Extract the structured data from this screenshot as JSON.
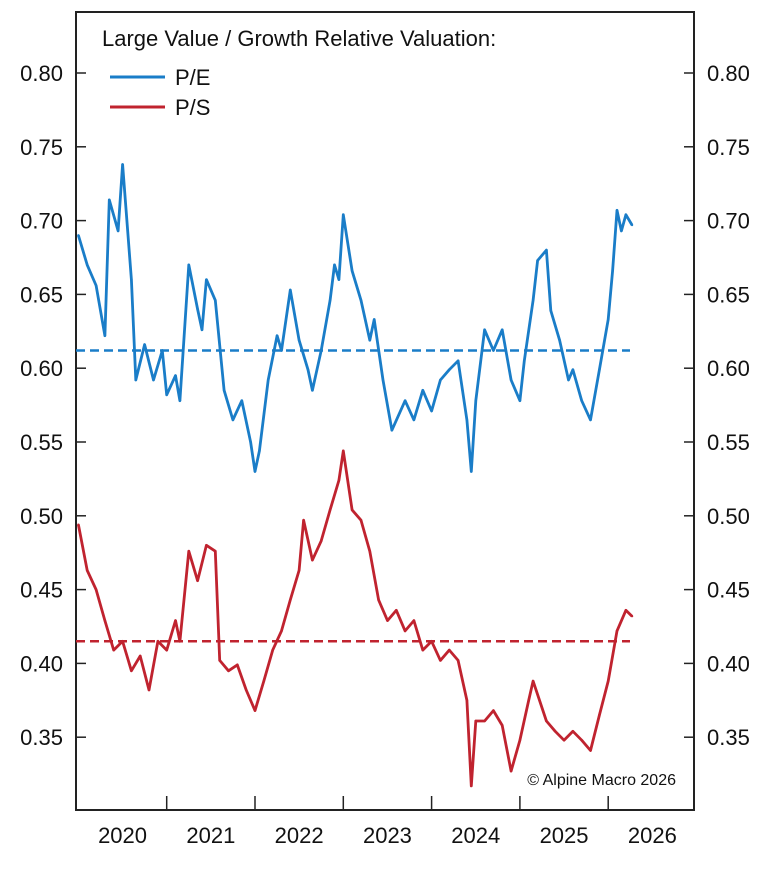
{
  "chart_data": {
    "type": "line",
    "title": "Large Value / Growth Relative Valuation:",
    "xlabel": "",
    "ylabel": "",
    "xlim": [
      2020.0,
      2027.0
    ],
    "ylim": [
      0.3,
      0.84
    ],
    "yticks": [
      "0.80",
      "0.75",
      "0.70",
      "0.65",
      "0.60",
      "0.55",
      "0.50",
      "0.45",
      "0.40",
      "0.35"
    ],
    "xticks": [
      "2020",
      "2021",
      "2022",
      "2023",
      "2024",
      "2025",
      "2026"
    ],
    "grid": false,
    "legend_placement": "top-left",
    "annotation": "© Alpine Macro 2026",
    "series": [
      {
        "name": "P/E",
        "color": "#1a7dc8",
        "mean": 0.612,
        "x": [
          2020.0,
          2020.1,
          2020.2,
          2020.3,
          2020.35,
          2020.45,
          2020.5,
          2020.6,
          2020.65,
          2020.75,
          2020.85,
          2020.95,
          2021.0,
          2021.1,
          2021.15,
          2021.25,
          2021.35,
          2021.4,
          2021.45,
          2021.55,
          2021.65,
          2021.75,
          2021.85,
          2021.95,
          2022.0,
          2022.05,
          2022.15,
          2022.25,
          2022.3,
          2022.4,
          2022.5,
          2022.6,
          2022.65,
          2022.75,
          2022.85,
          2022.9,
          2022.95,
          2023.0,
          2023.1,
          2023.2,
          2023.3,
          2023.35,
          2023.45,
          2023.55,
          2023.7,
          2023.8,
          2023.9,
          2024.0,
          2024.1,
          2024.2,
          2024.3,
          2024.35,
          2024.4,
          2024.45,
          2024.5,
          2024.6,
          2024.7,
          2024.8,
          2024.9,
          2025.0,
          2025.05,
          2025.15,
          2025.2,
          2025.3,
          2025.35,
          2025.45,
          2025.55,
          2025.6,
          2025.7,
          2025.8,
          2025.9,
          2026.0,
          2026.05,
          2026.1,
          2026.15,
          2026.2,
          2026.27
        ],
        "values": [
          0.69,
          0.67,
          0.656,
          0.622,
          0.714,
          0.693,
          0.738,
          0.66,
          0.592,
          0.616,
          0.592,
          0.612,
          0.582,
          0.595,
          0.578,
          0.67,
          0.64,
          0.626,
          0.66,
          0.646,
          0.585,
          0.565,
          0.578,
          0.55,
          0.53,
          0.544,
          0.592,
          0.622,
          0.612,
          0.653,
          0.619,
          0.599,
          0.585,
          0.612,
          0.646,
          0.67,
          0.66,
          0.704,
          0.666,
          0.646,
          0.619,
          0.633,
          0.592,
          0.558,
          0.578,
          0.565,
          0.585,
          0.571,
          0.592,
          0.599,
          0.605,
          0.585,
          0.565,
          0.53,
          0.578,
          0.626,
          0.612,
          0.626,
          0.592,
          0.578,
          0.605,
          0.646,
          0.673,
          0.68,
          0.639,
          0.619,
          0.592,
          0.599,
          0.578,
          0.565,
          0.599,
          0.633,
          0.666,
          0.707,
          0.693,
          0.704,
          0.697
        ]
      },
      {
        "name": "P/S",
        "color": "#c0232f",
        "mean": 0.415,
        "x": [
          2020.0,
          2020.1,
          2020.2,
          2020.3,
          2020.4,
          2020.5,
          2020.6,
          2020.7,
          2020.8,
          2020.9,
          2021.0,
          2021.1,
          2021.15,
          2021.25,
          2021.35,
          2021.45,
          2021.55,
          2021.6,
          2021.7,
          2021.8,
          2021.9,
          2022.0,
          2022.1,
          2022.2,
          2022.3,
          2022.4,
          2022.5,
          2022.55,
          2022.65,
          2022.75,
          2022.85,
          2022.95,
          2023.0,
          2023.1,
          2023.2,
          2023.3,
          2023.4,
          2023.5,
          2023.6,
          2023.7,
          2023.8,
          2023.9,
          2024.0,
          2024.1,
          2024.2,
          2024.3,
          2024.4,
          2024.45,
          2024.5,
          2024.6,
          2024.7,
          2024.8,
          2024.9,
          2025.0,
          2025.1,
          2025.15,
          2025.3,
          2025.4,
          2025.5,
          2025.6,
          2025.7,
          2025.8,
          2025.9,
          2026.0,
          2026.1,
          2026.2,
          2026.27
        ],
        "values": [
          0.494,
          0.463,
          0.45,
          0.429,
          0.409,
          0.415,
          0.395,
          0.405,
          0.382,
          0.415,
          0.409,
          0.429,
          0.415,
          0.476,
          0.456,
          0.48,
          0.476,
          0.402,
          0.395,
          0.399,
          0.382,
          0.368,
          0.388,
          0.409,
          0.422,
          0.443,
          0.463,
          0.497,
          0.47,
          0.483,
          0.504,
          0.524,
          0.544,
          0.504,
          0.497,
          0.476,
          0.443,
          0.429,
          0.436,
          0.422,
          0.429,
          0.409,
          0.415,
          0.402,
          0.409,
          0.402,
          0.375,
          0.317,
          0.361,
          0.361,
          0.368,
          0.358,
          0.327,
          0.348,
          0.375,
          0.388,
          0.361,
          0.354,
          0.348,
          0.354,
          0.348,
          0.341,
          0.365,
          0.388,
          0.422,
          0.436,
          0.432
        ]
      }
    ]
  }
}
